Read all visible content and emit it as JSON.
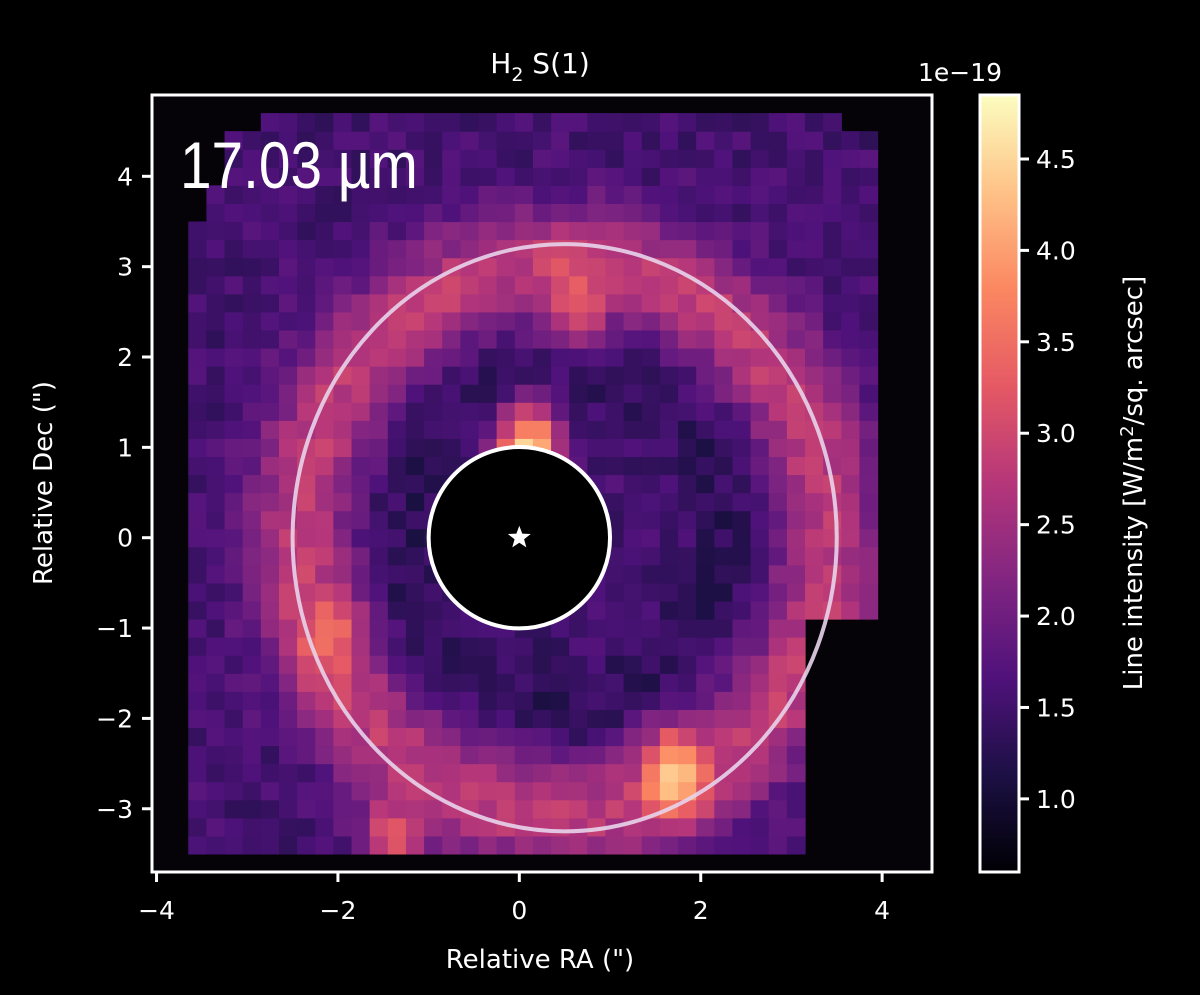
{
  "chart_data": {
    "type": "heatmap",
    "title": {
      "main": "H",
      "subscript": "2",
      "rest": " S(1)"
    },
    "annotation": "17.03 µm",
    "xlabel": "Relative RA (\")",
    "ylabel": "Relative Dec (\")",
    "xlim": [
      -4.05,
      4.55
    ],
    "ylim": [
      -3.7,
      4.9
    ],
    "x_ticks": [
      {
        "value": -4,
        "label": "−4"
      },
      {
        "value": -2,
        "label": "−2"
      },
      {
        "value": 0,
        "label": "0"
      },
      {
        "value": 2,
        "label": "2"
      },
      {
        "value": 4,
        "label": "4"
      }
    ],
    "y_ticks": [
      {
        "value": 4,
        "label": "4"
      },
      {
        "value": 3,
        "label": "3"
      },
      {
        "value": 2,
        "label": "2"
      },
      {
        "value": 1,
        "label": "1"
      },
      {
        "value": 0,
        "label": "0"
      },
      {
        "value": -1,
        "label": "−1"
      },
      {
        "value": -2,
        "label": "−2"
      },
      {
        "value": -3,
        "label": "−3"
      }
    ],
    "colorbar": {
      "label": {
        "prefix": "Line intensity [W/m",
        "sup": "2",
        "suffix": "/sq. arcsec]"
      },
      "offset_text": "1e−19",
      "range": [
        0.6,
        4.85
      ],
      "colormap": "magma",
      "ticks": [
        {
          "value": 1.0,
          "label": "1.0"
        },
        {
          "value": 1.5,
          "label": "1.5"
        },
        {
          "value": 2.0,
          "label": "2.0"
        },
        {
          "value": 2.5,
          "label": "2.5"
        },
        {
          "value": 3.0,
          "label": "3.0"
        },
        {
          "value": 3.5,
          "label": "3.5"
        },
        {
          "value": 4.0,
          "label": "4.0"
        },
        {
          "value": 4.5,
          "label": "4.5"
        }
      ]
    },
    "heatmap": {
      "pixel_size_arcsec": 0.2,
      "ring_center": [
        0.5,
        0.0
      ],
      "ring_radius": 2.9,
      "ring_width": 0.6,
      "ring_peak": 2.8,
      "background_level": 1.55,
      "map_edge_left": -3.7,
      "map_edge_bottom": -3.5,
      "map_edge_top": 4.7
    },
    "hotspots": [
      {
        "x": 0.1,
        "y": 0.98,
        "value": 4.8
      },
      {
        "x": 1.7,
        "y": -2.6,
        "value": 4.5
      },
      {
        "x": 0.6,
        "y": 2.6,
        "value": 3.4
      },
      {
        "x": -2.1,
        "y": -1.1,
        "value": 3.6
      },
      {
        "x": -1.4,
        "y": -3.3,
        "value": 3.2
      }
    ],
    "mask": {
      "center": [
        0,
        0
      ],
      "radius": 1.0
    },
    "star": {
      "x": 0,
      "y": 0
    },
    "ellipse": {
      "center": [
        0.5,
        0.0
      ],
      "rx": 3.0,
      "ry": 3.25,
      "color": "#e8d4ec"
    }
  }
}
